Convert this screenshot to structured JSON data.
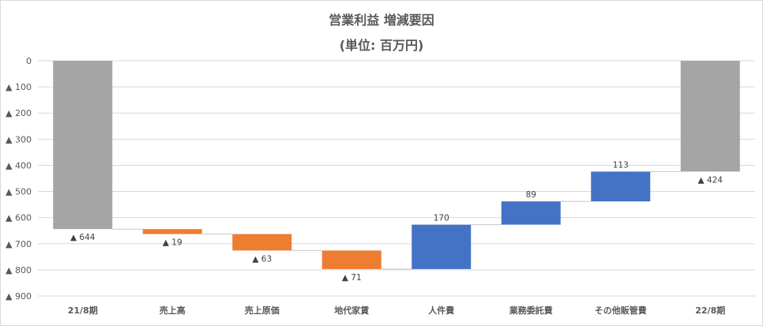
{
  "title": "営業利益 増減要因",
  "subtitle": "(単位: 百万円)",
  "chart_data": {
    "type": "waterfall",
    "title": "営業利益 増減要因",
    "subtitle": "(単位: 百万円)",
    "categories": [
      "21/8期",
      "売上高",
      "売上原価",
      "地代家賃",
      "人件費",
      "業務委託費",
      "その他販管費",
      "22/8期"
    ],
    "steps": [
      {
        "category": "21/8期",
        "kind": "total",
        "start": 0,
        "end": -644,
        "label": "▲ 644"
      },
      {
        "category": "売上高",
        "kind": "decrease",
        "start": -644,
        "end": -663,
        "label": "▲ 19"
      },
      {
        "category": "売上原価",
        "kind": "decrease",
        "start": -663,
        "end": -726,
        "label": "▲ 63"
      },
      {
        "category": "地代家賃",
        "kind": "decrease",
        "start": -726,
        "end": -797,
        "label": "▲ 71"
      },
      {
        "category": "人件費",
        "kind": "increase",
        "start": -797,
        "end": -627,
        "label": "170"
      },
      {
        "category": "業務委託費",
        "kind": "increase",
        "start": -627,
        "end": -538,
        "label": "89"
      },
      {
        "category": "その他販管費",
        "kind": "increase",
        "start": -538,
        "end": -424,
        "label": "113"
      },
      {
        "category": "22/8期",
        "kind": "total",
        "start": 0,
        "end": -424,
        "label": "▲ 424"
      }
    ],
    "y_ticks": [
      {
        "value": 0,
        "label": "0"
      },
      {
        "value": -100,
        "label": "▲ 100"
      },
      {
        "value": -200,
        "label": "▲ 200"
      },
      {
        "value": -300,
        "label": "▲ 300"
      },
      {
        "value": -400,
        "label": "▲ 400"
      },
      {
        "value": -500,
        "label": "▲ 500"
      },
      {
        "value": -600,
        "label": "▲ 600"
      },
      {
        "value": -700,
        "label": "▲ 700"
      },
      {
        "value": -800,
        "label": "▲ 800"
      },
      {
        "value": -900,
        "label": "▲ 900"
      }
    ],
    "ylim": [
      -900,
      0
    ],
    "grid": true,
    "legend": "none",
    "colors": {
      "total": "#a5a5a5",
      "decrease": "#ed7d31",
      "increase": "#4472c4",
      "grid": "#d9d9d9",
      "text": "#595959"
    }
  }
}
